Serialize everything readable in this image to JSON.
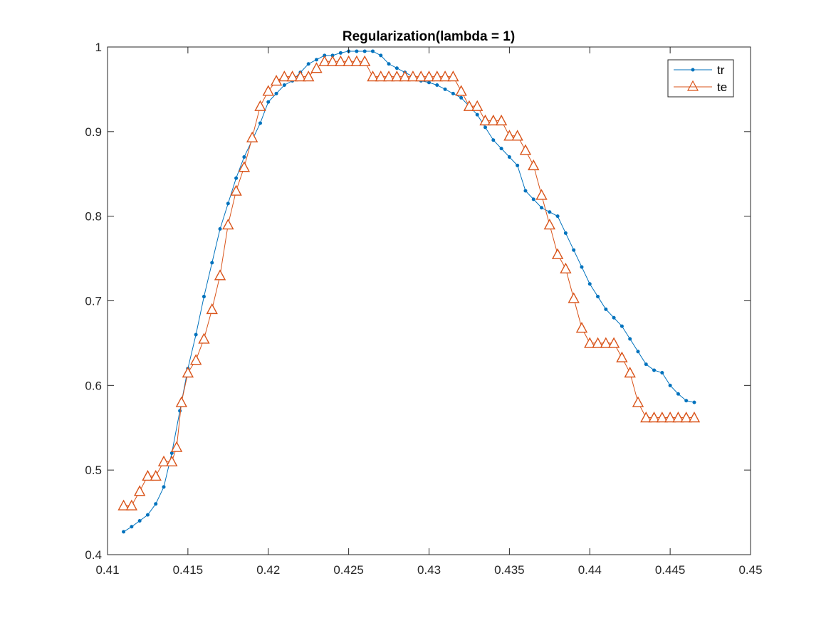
{
  "chart_data": {
    "type": "line",
    "title": "Regularization(lambda = 1)",
    "xlim": [
      0.41,
      0.45
    ],
    "ylim": [
      0.4,
      1.0
    ],
    "xticks": [
      0.41,
      0.415,
      0.42,
      0.425,
      0.43,
      0.435,
      0.44,
      0.445,
      0.45
    ],
    "xtick_labels": [
      "0.41",
      "0.415",
      "0.42",
      "0.425",
      "0.43",
      "0.435",
      "0.44",
      "0.445",
      "0.45"
    ],
    "yticks": [
      0.4,
      0.5,
      0.6,
      0.7,
      0.8,
      0.9,
      1.0
    ],
    "ytick_labels": [
      "0.4",
      "0.5",
      "0.6",
      "0.7",
      "0.8",
      "0.9",
      "1"
    ],
    "grid": false,
    "box": true,
    "legend_position": "top-right",
    "series": [
      {
        "name": "tr",
        "color": "#0072BD",
        "marker": "dot",
        "x": [
          0.411,
          0.4115,
          0.412,
          0.4125,
          0.413,
          0.4135,
          0.414,
          0.4145,
          0.415,
          0.4155,
          0.416,
          0.4165,
          0.417,
          0.4175,
          0.418,
          0.4185,
          0.419,
          0.4195,
          0.42,
          0.4205,
          0.421,
          0.4215,
          0.422,
          0.4225,
          0.423,
          0.4235,
          0.424,
          0.4245,
          0.425,
          0.4255,
          0.426,
          0.4265,
          0.427,
          0.4275,
          0.428,
          0.4285,
          0.429,
          0.4295,
          0.43,
          0.4305,
          0.431,
          0.4315,
          0.432,
          0.4325,
          0.433,
          0.4335,
          0.434,
          0.4345,
          0.435,
          0.4355,
          0.436,
          0.4365,
          0.437,
          0.4375,
          0.438,
          0.4385,
          0.439,
          0.4395,
          0.44,
          0.4405,
          0.441,
          0.4415,
          0.442,
          0.4425,
          0.443,
          0.4435,
          0.444,
          0.4445,
          0.445,
          0.4455,
          0.446,
          0.4465
        ],
        "y": [
          0.427,
          0.433,
          0.44,
          0.447,
          0.46,
          0.48,
          0.52,
          0.57,
          0.62,
          0.66,
          0.705,
          0.745,
          0.785,
          0.815,
          0.845,
          0.87,
          0.89,
          0.91,
          0.935,
          0.945,
          0.955,
          0.96,
          0.97,
          0.98,
          0.985,
          0.99,
          0.99,
          0.993,
          0.995,
          0.995,
          0.995,
          0.995,
          0.99,
          0.98,
          0.975,
          0.97,
          0.965,
          0.96,
          0.958,
          0.955,
          0.95,
          0.945,
          0.94,
          0.93,
          0.92,
          0.905,
          0.89,
          0.88,
          0.87,
          0.86,
          0.83,
          0.82,
          0.81,
          0.805,
          0.8,
          0.78,
          0.76,
          0.74,
          0.72,
          0.705,
          0.69,
          0.68,
          0.67,
          0.655,
          0.64,
          0.625,
          0.618,
          0.615,
          0.6,
          0.59,
          0.582,
          0.58
        ]
      },
      {
        "name": "te",
        "color": "#D95319",
        "marker": "triangle",
        "x": [
          0.411,
          0.4115,
          0.412,
          0.4125,
          0.413,
          0.4135,
          0.414,
          0.4143,
          0.4146,
          0.415,
          0.4155,
          0.416,
          0.4165,
          0.417,
          0.4175,
          0.418,
          0.4185,
          0.419,
          0.4195,
          0.42,
          0.4205,
          0.421,
          0.4215,
          0.422,
          0.4225,
          0.423,
          0.4235,
          0.424,
          0.4245,
          0.425,
          0.4255,
          0.426,
          0.4265,
          0.427,
          0.4275,
          0.428,
          0.4285,
          0.429,
          0.4295,
          0.43,
          0.4305,
          0.431,
          0.4315,
          0.432,
          0.4325,
          0.433,
          0.4335,
          0.434,
          0.4345,
          0.435,
          0.4355,
          0.436,
          0.4365,
          0.437,
          0.4375,
          0.438,
          0.4385,
          0.439,
          0.4395,
          0.44,
          0.4405,
          0.441,
          0.4415,
          0.442,
          0.4425,
          0.443,
          0.4435,
          0.444,
          0.4445,
          0.445,
          0.4455,
          0.446,
          0.4465
        ],
        "y": [
          0.458,
          0.458,
          0.475,
          0.493,
          0.493,
          0.51,
          0.51,
          0.527,
          0.58,
          0.615,
          0.63,
          0.655,
          0.69,
          0.73,
          0.79,
          0.83,
          0.858,
          0.893,
          0.93,
          0.948,
          0.96,
          0.965,
          0.965,
          0.965,
          0.965,
          0.975,
          0.983,
          0.983,
          0.983,
          0.983,
          0.983,
          0.983,
          0.965,
          0.965,
          0.965,
          0.965,
          0.965,
          0.965,
          0.965,
          0.965,
          0.965,
          0.965,
          0.965,
          0.948,
          0.93,
          0.93,
          0.913,
          0.913,
          0.913,
          0.895,
          0.895,
          0.878,
          0.86,
          0.825,
          0.79,
          0.755,
          0.738,
          0.703,
          0.668,
          0.65,
          0.65,
          0.65,
          0.65,
          0.633,
          0.615,
          0.58,
          0.562,
          0.562,
          0.562,
          0.562,
          0.562,
          0.562,
          0.562
        ]
      }
    ]
  }
}
